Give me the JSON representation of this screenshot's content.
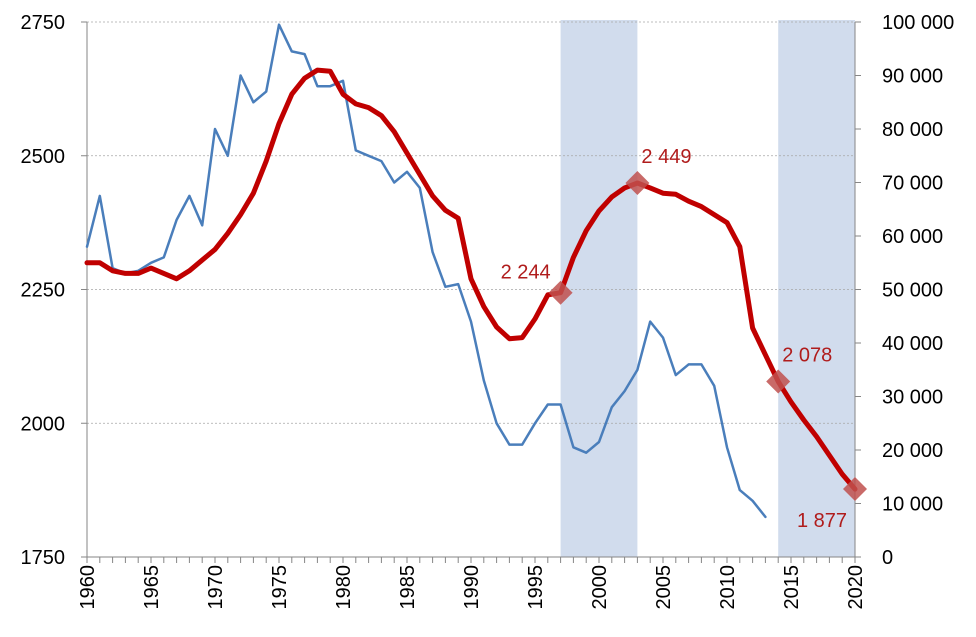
{
  "chart_data": {
    "type": "line",
    "title": "",
    "xlabel": "",
    "ylabel": "",
    "y2label": "",
    "xlim": [
      1960,
      2020
    ],
    "ylim": [
      1750,
      2750
    ],
    "y2lim": [
      0,
      100000
    ],
    "x_ticks": [
      1960,
      1965,
      1970,
      1975,
      1980,
      1985,
      1990,
      1995,
      2000,
      2005,
      2010,
      2015,
      2020
    ],
    "x_tick_labels": [
      "1960",
      "1965",
      "1970",
      "1975",
      "1980",
      "1985",
      "1990",
      "1995",
      "2000",
      "2005",
      "2010",
      "2015",
      "2020"
    ],
    "y_ticks": [
      1750,
      2000,
      2250,
      2500,
      2750
    ],
    "y_tick_labels": [
      "1750",
      "2000",
      "2250",
      "2500",
      "2750"
    ],
    "y2_ticks": [
      0,
      10000,
      20000,
      30000,
      40000,
      50000,
      60000,
      70000,
      80000,
      90000,
      100000
    ],
    "y2_tick_labels": [
      "0",
      "10 000",
      "20 000",
      "30 000",
      "40 000",
      "50 000",
      "60 000",
      "70 000",
      "80 000",
      "90 000",
      "100 000"
    ],
    "grid": true,
    "legend": "none",
    "shaded_ranges": [
      [
        1997,
        2003
      ],
      [
        2014,
        2020
      ]
    ],
    "series": [
      {
        "axis": "left",
        "color": "#c00000",
        "x": [
          1960,
          1961,
          1962,
          1963,
          1964,
          1965,
          1966,
          1967,
          1968,
          1969,
          1970,
          1971,
          1972,
          1973,
          1974,
          1975,
          1976,
          1977,
          1978,
          1979,
          1980,
          1981,
          1982,
          1983,
          1984,
          1985,
          1986,
          1987,
          1988,
          1989,
          1990,
          1991,
          1992,
          1993,
          1994,
          1995,
          1996,
          1997,
          1998,
          1999,
          2000,
          2001,
          2002,
          2003,
          2004,
          2005,
          2006,
          2007,
          2008,
          2009,
          2010,
          2011,
          2012,
          2013,
          2014,
          2015,
          2016,
          2017,
          2018,
          2019,
          2020
        ],
        "values": [
          2300,
          2300,
          2285,
          2280,
          2280,
          2290,
          2280,
          2270,
          2285,
          2305,
          2325,
          2355,
          2390,
          2430,
          2490,
          2560,
          2615,
          2645,
          2660,
          2658,
          2615,
          2597,
          2590,
          2575,
          2545,
          2505,
          2465,
          2425,
          2398,
          2383,
          2270,
          2218,
          2180,
          2158,
          2160,
          2195,
          2240,
          2244,
          2310,
          2360,
          2397,
          2423,
          2440,
          2449,
          2440,
          2430,
          2428,
          2415,
          2405,
          2390,
          2375,
          2330,
          2178,
          2128,
          2078,
          2040,
          2006,
          1975,
          1940,
          1905,
          1877
        ]
      },
      {
        "axis": "right",
        "color": "#4a7ebb",
        "x": [
          1960,
          1961,
          1962,
          1963,
          1964,
          1965,
          1966,
          1967,
          1968,
          1969,
          1970,
          1971,
          1972,
          1973,
          1974,
          1975,
          1976,
          1977,
          1978,
          1979,
          1980,
          1981,
          1982,
          1983,
          1984,
          1985,
          1986,
          1987,
          1988,
          1989,
          1990,
          1991,
          1992,
          1993,
          1994,
          1995,
          1996,
          1997,
          1998,
          1999,
          2000,
          2001,
          2002,
          2003,
          2004,
          2005,
          2006,
          2007,
          2008,
          2009,
          2010,
          2011,
          2012,
          2013
        ],
        "values": [
          58000,
          67500,
          54000,
          53000,
          53500,
          55000,
          56000,
          63000,
          67500,
          62000,
          80000,
          75000,
          90000,
          85000,
          87000,
          99500,
          94500,
          94000,
          88000,
          88000,
          89000,
          76000,
          75000,
          74000,
          70000,
          72000,
          69000,
          57000,
          50500,
          51000,
          44000,
          33000,
          25000,
          21000,
          21000,
          25000,
          28500,
          28500,
          20500,
          19500,
          21500,
          28000,
          31000,
          35000,
          44000,
          41000,
          34000,
          36000,
          36000,
          32000,
          20500,
          12500,
          10500,
          7500
        ]
      }
    ],
    "annotations": [
      {
        "x": 1997,
        "y": 2244,
        "label": "2 244"
      },
      {
        "x": 2003,
        "y": 2449,
        "label": "2 449"
      },
      {
        "x": 2014,
        "y": 2078,
        "label": "2 078"
      },
      {
        "x": 2020,
        "y": 1877,
        "label": "1 877"
      }
    ]
  }
}
